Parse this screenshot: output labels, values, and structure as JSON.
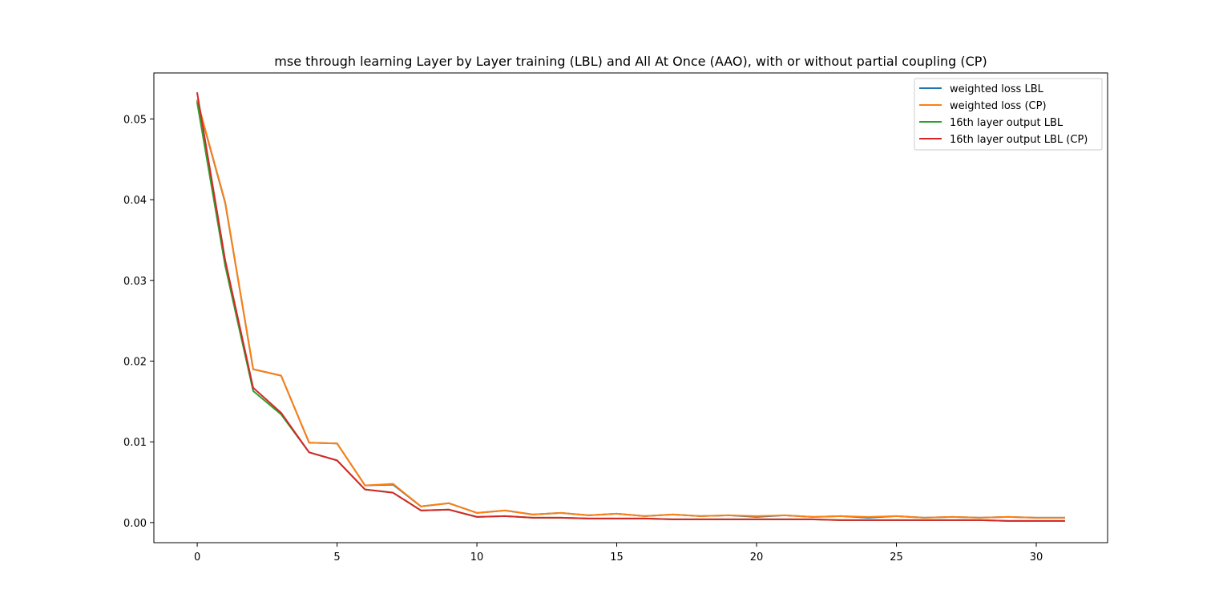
{
  "chart_data": {
    "type": "line",
    "title": "mse through learning Layer by Layer training (LBL) and All At Once (AAO), with or without partial coupling (CP)",
    "xlabel": "",
    "ylabel": "",
    "xlim": [
      -1.55,
      32.55
    ],
    "ylim": [
      -0.00249,
      0.0557
    ],
    "xticks": [
      0,
      5,
      10,
      15,
      20,
      25,
      30
    ],
    "xtick_labels": [
      "0",
      "5",
      "10",
      "15",
      "20",
      "25",
      "30"
    ],
    "yticks": [
      0.0,
      0.01,
      0.02,
      0.03,
      0.04,
      0.05
    ],
    "ytick_labels": [
      "0.00",
      "0.01",
      "0.02",
      "0.03",
      "0.04",
      "0.05"
    ],
    "grid": false,
    "legend_position": "top-right",
    "x": [
      0,
      1,
      2,
      3,
      4,
      5,
      6,
      7,
      8,
      9,
      10,
      11,
      12,
      13,
      14,
      15,
      16,
      17,
      18,
      19,
      20,
      21,
      22,
      23,
      24,
      25,
      26,
      27,
      28,
      29,
      30,
      31
    ],
    "series": [
      {
        "name": "weighted loss LBL",
        "color": "#1f77b4",
        "values": [
          0.0522,
          0.0396,
          0.019,
          0.0182,
          0.0099,
          0.0098,
          0.0046,
          0.0047,
          0.002,
          0.0024,
          0.0012,
          0.0015,
          0.001,
          0.0012,
          0.0009,
          0.0011,
          0.0008,
          0.001,
          0.0008,
          0.0009,
          0.0007,
          0.0009,
          0.0007,
          0.0008,
          0.0006,
          0.0008,
          0.0006,
          0.0007,
          0.0006,
          0.0007,
          0.0006,
          0.0006
        ]
      },
      {
        "name": "weighted loss (CP)",
        "color": "#ff7f0e",
        "values": [
          0.0523,
          0.0397,
          0.019,
          0.0182,
          0.0099,
          0.0098,
          0.0046,
          0.0048,
          0.002,
          0.0024,
          0.0012,
          0.0015,
          0.001,
          0.0012,
          0.0009,
          0.0011,
          0.0008,
          0.001,
          0.0008,
          0.0009,
          0.0008,
          0.0009,
          0.0007,
          0.0008,
          0.0007,
          0.0008,
          0.0006,
          0.0007,
          0.0006,
          0.0007,
          0.0006,
          0.0006
        ]
      },
      {
        "name": "16th layer output LBL",
        "color": "#2ca02c",
        "values": [
          0.052,
          0.0318,
          0.0163,
          0.0134,
          0.0087,
          0.0077,
          0.0041,
          0.0037,
          0.0015,
          0.0016,
          0.0007,
          0.0008,
          0.0006,
          0.0006,
          0.0005,
          0.0005,
          0.0005,
          0.0004,
          0.0004,
          0.0004,
          0.0004,
          0.0004,
          0.0004,
          0.0003,
          0.0003,
          0.0003,
          0.0003,
          0.0003,
          0.0003,
          0.0002,
          0.0002,
          0.0002
        ]
      },
      {
        "name": "16th layer output LBL (CP)",
        "color": "#d62728",
        "values": [
          0.0532,
          0.0325,
          0.0167,
          0.0136,
          0.0087,
          0.0077,
          0.0041,
          0.0037,
          0.0015,
          0.0016,
          0.0007,
          0.0008,
          0.0006,
          0.0006,
          0.0005,
          0.0005,
          0.0005,
          0.0004,
          0.0004,
          0.0004,
          0.0004,
          0.0004,
          0.0004,
          0.0003,
          0.0003,
          0.0003,
          0.0003,
          0.0003,
          0.0003,
          0.0002,
          0.0002,
          0.0002
        ]
      }
    ]
  }
}
